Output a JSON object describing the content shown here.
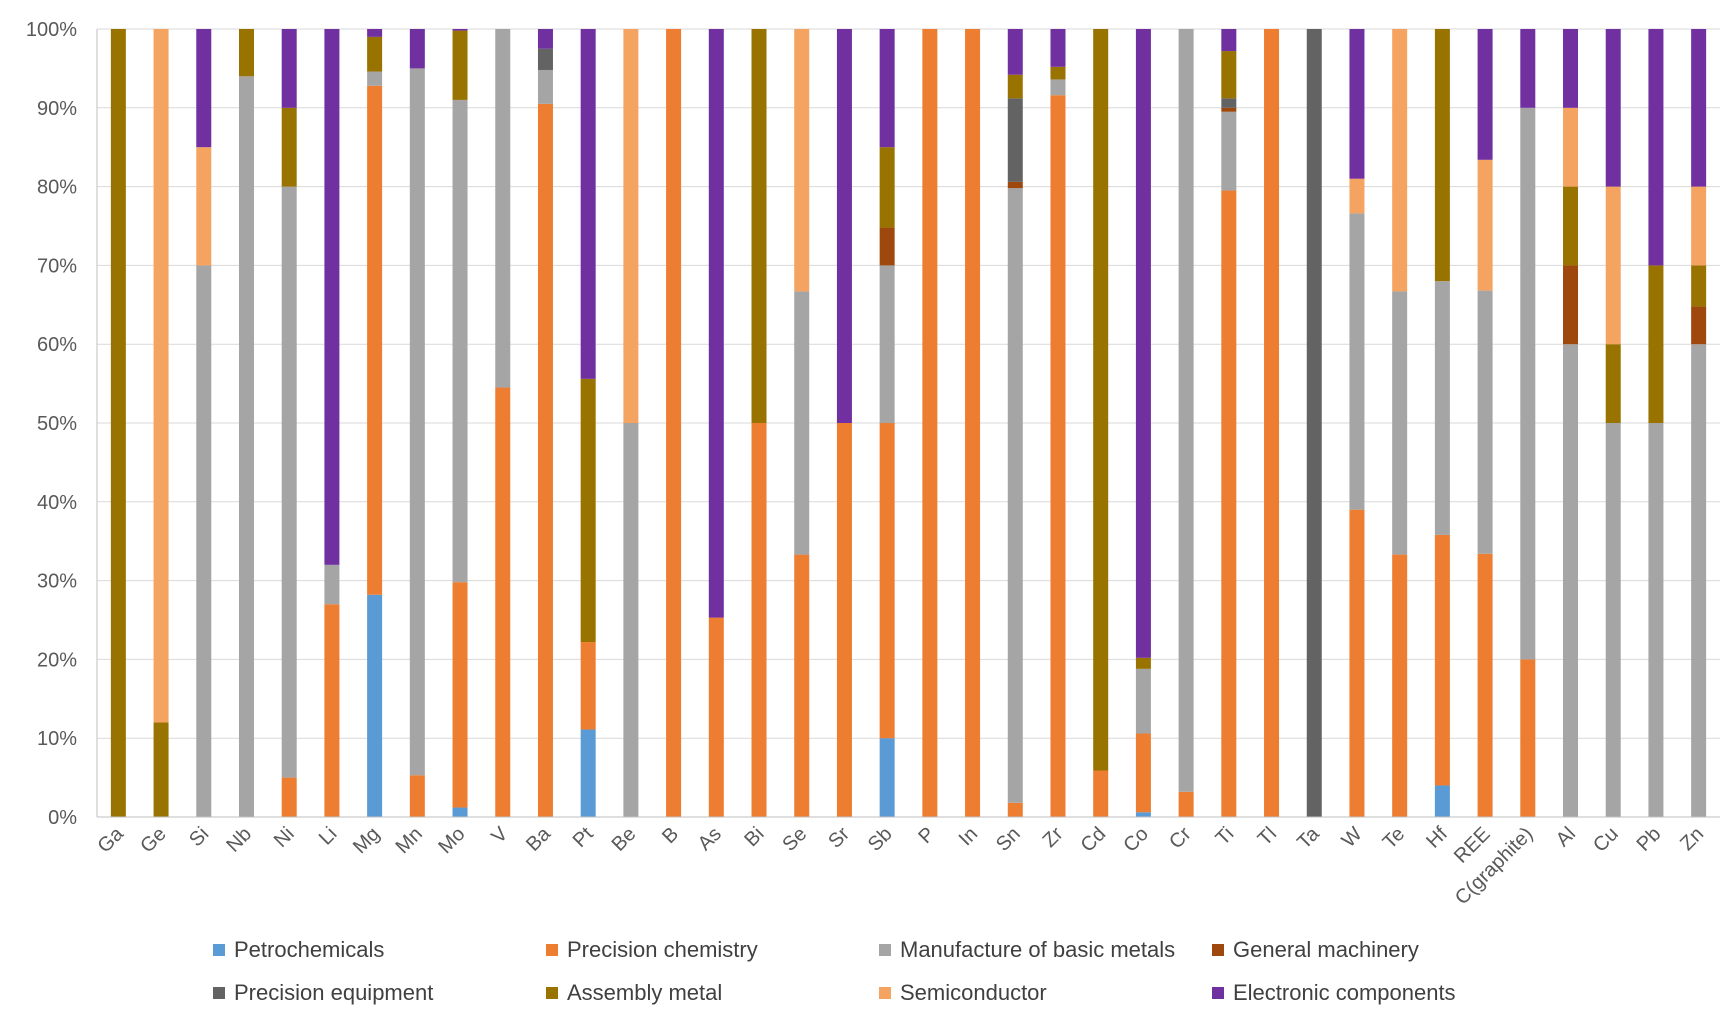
{
  "chart_data": {
    "type": "bar",
    "stacked": true,
    "percent": true,
    "title": "",
    "xlabel": "",
    "ylabel": "",
    "ylim": [
      0,
      100
    ],
    "y_ticks": [
      "0%",
      "10%",
      "20%",
      "30%",
      "40%",
      "50%",
      "60%",
      "70%",
      "80%",
      "90%",
      "100%"
    ],
    "legend_position": "bottom",
    "categories": [
      "Ga",
      "Ge",
      "Si",
      "Nb",
      "Ni",
      "Li",
      "Mg",
      "Mn",
      "Mo",
      "V",
      "Ba",
      "Pt",
      "Be",
      "B",
      "As",
      "Bi",
      "Se",
      "Sr",
      "Sb",
      "P",
      "In",
      "Sn",
      "Zr",
      "Cd",
      "Co",
      "Cr",
      "Ti",
      "Tl",
      "Ta",
      "W",
      "Te",
      "Hf",
      "REE",
      "C(graphite)",
      "Al",
      "Cu",
      "Pb",
      "Zn"
    ],
    "series": [
      {
        "name": "Petrochemicals",
        "color": "#5B9BD5",
        "values": [
          0,
          0,
          0,
          0,
          0,
          0,
          28.2,
          0,
          1.2,
          0,
          0,
          11.1,
          0,
          0,
          0,
          0,
          0,
          0,
          10,
          0,
          0,
          0,
          0,
          0,
          0.6,
          0,
          0,
          0,
          0,
          0,
          0,
          4,
          0,
          0,
          0,
          0,
          0,
          0
        ]
      },
      {
        "name": "Precision chemistry",
        "color": "#ED7D31",
        "values": [
          0,
          0,
          0,
          0,
          5,
          27,
          64.6,
          5.3,
          28.6,
          54.5,
          90.5,
          11.1,
          0,
          100,
          25.3,
          50,
          33.3,
          50,
          40,
          100,
          100,
          1.8,
          91.6,
          5.9,
          10,
          3.2,
          79.5,
          100,
          0,
          39,
          33.3,
          31.8,
          33.4,
          20,
          0,
          0,
          0,
          0
        ]
      },
      {
        "name": "Manufacture of basic metals",
        "color": "#A5A5A5",
        "values": [
          0,
          0,
          70,
          94,
          75,
          5,
          1.8,
          89.7,
          61.2,
          45.5,
          4.3,
          0,
          50,
          0,
          0,
          0,
          33.4,
          0,
          20,
          0,
          0,
          78,
          2,
          0,
          8.2,
          96.8,
          10,
          0,
          0,
          37.6,
          33.4,
          32.2,
          33.4,
          70,
          60,
          50,
          50,
          60
        ]
      },
      {
        "name": "General machinery",
        "color": "#9E480E",
        "values": [
          0,
          0,
          0,
          0,
          0,
          0,
          0,
          0,
          0,
          0,
          0,
          0,
          0,
          0,
          0,
          0,
          0,
          0,
          4.8,
          0,
          0,
          0.8,
          0,
          0,
          0,
          0,
          0.5,
          0,
          0,
          0,
          0,
          0,
          0,
          0,
          10,
          0,
          0,
          4.8
        ]
      },
      {
        "name": "Precision equipment",
        "color": "#636363",
        "values": [
          0,
          0,
          0,
          0,
          0,
          0,
          0,
          0,
          0,
          0,
          2.7,
          0,
          0,
          0,
          0,
          0,
          0,
          0,
          0,
          0,
          0,
          10.6,
          0,
          0,
          0,
          0,
          1.2,
          0,
          100,
          0,
          0,
          0,
          0,
          0,
          0,
          0,
          0,
          0
        ]
      },
      {
        "name": "Assembly metal",
        "color": "#997300",
        "values": [
          100,
          12,
          0,
          6,
          10,
          0,
          4.4,
          0,
          8.8,
          0,
          0,
          33.4,
          0,
          0,
          0,
          50,
          0,
          0,
          10.2,
          0,
          0,
          3,
          1.6,
          94.1,
          1.4,
          0,
          6,
          0,
          0,
          0,
          0,
          32,
          0,
          0,
          10,
          10,
          20,
          5.2
        ]
      },
      {
        "name": "Semiconductor",
        "color": "#F4A460",
        "values": [
          0,
          88,
          15,
          0,
          0,
          0,
          0,
          0,
          0,
          0,
          0,
          0,
          50,
          0,
          0,
          0,
          33.3,
          0,
          0,
          0,
          0,
          0,
          0,
          0,
          0,
          0,
          0,
          0,
          0,
          4.4,
          33.3,
          0,
          16.6,
          0,
          10,
          20,
          0,
          10
        ]
      },
      {
        "name": "Electronic components",
        "color": "#7030A0",
        "values": [
          0,
          0,
          15,
          0,
          10,
          68,
          1,
          5,
          0.2,
          0,
          2.5,
          44.4,
          0,
          0,
          74.7,
          0,
          0,
          50,
          15,
          0,
          0,
          5.8,
          4.8,
          0,
          79.8,
          0,
          2.8,
          0,
          0,
          19,
          0,
          0,
          16.6,
          10,
          10,
          20,
          30,
          20
        ]
      }
    ]
  }
}
